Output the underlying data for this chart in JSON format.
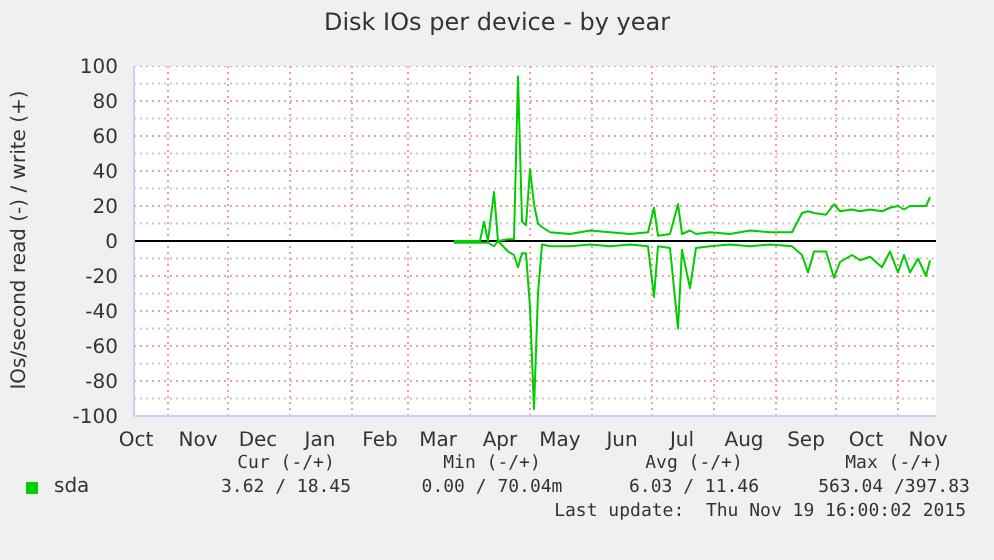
{
  "chart_data": {
    "type": "line",
    "title": "Disk IOs per device - by year",
    "ylabel": "IOs/second read (-) / write (+)",
    "x": [
      "2015-03-24",
      "2015-04-01",
      "2015-04-06",
      "2015-04-08",
      "2015-04-10",
      "2015-04-13",
      "2015-04-15",
      "2015-04-20",
      "2015-04-23",
      "2015-04-25",
      "2015-04-27",
      "2015-04-29",
      "2015-05-01",
      "2015-05-03",
      "2015-05-05",
      "2015-05-07",
      "2015-05-11",
      "2015-05-21",
      "2015-05-31",
      "2015-06-10",
      "2015-06-20",
      "2015-06-29",
      "2015-07-02",
      "2015-07-04",
      "2015-07-10",
      "2015-07-14",
      "2015-07-16",
      "2015-07-20",
      "2015-07-23",
      "2015-07-30",
      "2015-08-09",
      "2015-08-19",
      "2015-08-29",
      "2015-09-09",
      "2015-09-14",
      "2015-09-17",
      "2015-09-20",
      "2015-09-26",
      "2015-09-30",
      "2015-10-03",
      "2015-10-09",
      "2015-10-13",
      "2015-10-18",
      "2015-10-24",
      "2015-10-28",
      "2015-11-01",
      "2015-11-04",
      "2015-11-07",
      "2015-11-11",
      "2015-11-15",
      "2015-11-17"
    ],
    "series": [
      {
        "name": "sda",
        "color": "#00cc00",
        "values": [
          0,
          0,
          0,
          11,
          0,
          28,
          0,
          1,
          1,
          94,
          11,
          9,
          41,
          21,
          10,
          8,
          5,
          4,
          6,
          5,
          4,
          5,
          19,
          3,
          4,
          21,
          4,
          6,
          4,
          5,
          4,
          6,
          5,
          5,
          16,
          17,
          16,
          15,
          21,
          17,
          18,
          17,
          18,
          17,
          19,
          20,
          18,
          20,
          20,
          20,
          25
        ]
      },
      {
        "color": "#00cc00",
        "values": [
          -1,
          -1,
          -1,
          -1,
          -1,
          -3,
          0,
          -6,
          -8,
          -15,
          -7,
          -7,
          -38,
          -96,
          -30,
          -2,
          -3,
          -3,
          -2,
          -3,
          -2,
          -3,
          -32,
          -3,
          -4,
          -50,
          -5,
          -27,
          -4,
          -3,
          -2,
          -3,
          -2,
          -3,
          -8,
          -18,
          -6,
          -6,
          -21,
          -12,
          -8,
          -11,
          -9,
          -15,
          -6,
          -18,
          -8,
          -18,
          -10,
          -20,
          -11
        ]
      }
    ],
    "xlim": [
      "2014-10-15",
      "2015-11-20"
    ],
    "xticks": [
      {
        "value": "2014-10-16",
        "label": "Oct"
      },
      {
        "value": "2014-11-01",
        "label": null
      },
      {
        "value": "2014-11-16",
        "label": "Nov"
      },
      {
        "value": "2014-12-01",
        "label": null
      },
      {
        "value": "2014-12-16",
        "label": "Dec"
      },
      {
        "value": "2015-01-01",
        "label": null
      },
      {
        "value": "2015-01-16",
        "label": "Jan"
      },
      {
        "value": "2015-02-01",
        "label": null
      },
      {
        "value": "2015-02-15",
        "label": "Feb"
      },
      {
        "value": "2015-03-01",
        "label": null
      },
      {
        "value": "2015-03-16",
        "label": "Mar"
      },
      {
        "value": "2015-04-01",
        "label": null
      },
      {
        "value": "2015-04-16",
        "label": "Apr"
      },
      {
        "value": "2015-05-01",
        "label": null
      },
      {
        "value": "2015-05-16",
        "label": "May"
      },
      {
        "value": "2015-06-01",
        "label": null
      },
      {
        "value": "2015-06-16",
        "label": "Jun"
      },
      {
        "value": "2015-07-01",
        "label": null
      },
      {
        "value": "2015-07-16",
        "label": "Jul"
      },
      {
        "value": "2015-08-01",
        "label": null
      },
      {
        "value": "2015-08-16",
        "label": "Aug"
      },
      {
        "value": "2015-09-01",
        "label": null
      },
      {
        "value": "2015-09-16",
        "label": "Sep"
      },
      {
        "value": "2015-10-01",
        "label": null
      },
      {
        "value": "2015-10-16",
        "label": "Oct"
      },
      {
        "value": "2015-11-01",
        "label": null
      },
      {
        "value": "2015-11-16",
        "label": "Nov"
      }
    ],
    "ylim": [
      -100,
      100
    ],
    "yticks": [
      -100,
      {
        "value": -90,
        "label": null
      },
      -80,
      {
        "value": -70,
        "label": null
      },
      -60,
      {
        "value": -50,
        "label": null
      },
      -40,
      {
        "value": -30,
        "label": null
      },
      -20,
      {
        "value": -10,
        "label": null
      },
      0,
      {
        "value": 10,
        "label": null
      },
      20,
      {
        "value": 30,
        "label": null
      },
      40,
      {
        "value": 50,
        "label": null
      },
      60,
      {
        "value": 70,
        "label": null
      },
      80,
      {
        "value": 90,
        "label": null
      },
      100
    ],
    "grid": true,
    "ref_lines": [
      {
        "axis": "y",
        "value": 0,
        "color": "#000000"
      }
    ],
    "legend": "bottom",
    "marker": "none",
    "line_style": "solid",
    "annotations": [
      "Cur (-/+)",
      "Min (-/+)",
      "Avg (-/+)",
      "Max (-/+)",
      "3.62 / 18.45",
      "0.00 / 70.04m",
      "6.03 / 11.46",
      "563.04 /397.83",
      "Last update:  Thu Nov 19 16:00:02 2015"
    ]
  }
}
